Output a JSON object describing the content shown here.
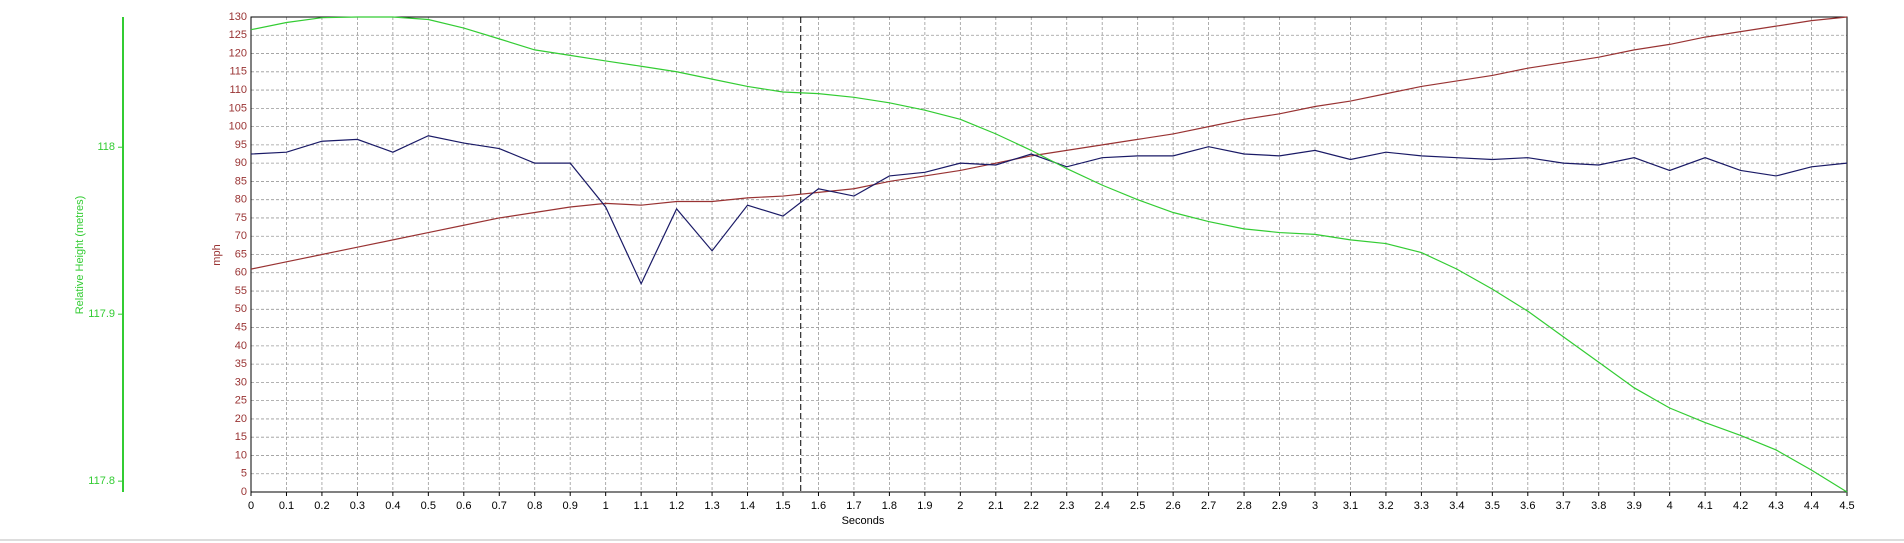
{
  "chart_data": {
    "type": "line",
    "x_label": "Seconds",
    "y_label": "mph",
    "y2_label": "Relative Height (metres)",
    "x": [
      0,
      0.1,
      0.2,
      0.3,
      0.4,
      0.5,
      0.6,
      0.7,
      0.8,
      0.9,
      1,
      1.1,
      1.2,
      1.3,
      1.4,
      1.5,
      1.6,
      1.7,
      1.8,
      1.9,
      2,
      2.1,
      2.2,
      2.3,
      2.4,
      2.5,
      2.6,
      2.7,
      2.8,
      2.9,
      3,
      3.1,
      3.2,
      3.3,
      3.4,
      3.5,
      3.6,
      3.7,
      3.8,
      3.9,
      4,
      4.1,
      4.2,
      4.3,
      4.4,
      4.5
    ],
    "series": [
      {
        "color": "#993333",
        "axis": "y",
        "values": [
          61,
          63,
          65,
          67,
          69,
          71,
          73,
          75,
          76.5,
          78,
          79,
          78.5,
          79.5,
          79.5,
          80.5,
          81,
          82,
          83,
          85,
          86.5,
          88,
          90,
          92,
          93.5,
          95,
          96.5,
          98,
          100,
          102,
          103.5,
          105.5,
          107,
          109,
          111,
          112.5,
          114,
          116,
          117.5,
          119,
          121,
          122.5,
          124.5,
          126,
          127.5,
          129,
          130
        ]
      },
      {
        "color": "#1a1a66",
        "axis": "y",
        "values": [
          92.5,
          93,
          96,
          96.5,
          93,
          97.5,
          95.5,
          94,
          90,
          90,
          78,
          57,
          77.5,
          66,
          78.5,
          75.5,
          83,
          81,
          86.5,
          87.5,
          90,
          89.5,
          92.5,
          89,
          91.5,
          92,
          92,
          94.5,
          92.5,
          92,
          93.5,
          91,
          93,
          92,
          91.5,
          91,
          91.5,
          90,
          89.5,
          91.5,
          88,
          91.5,
          88,
          86.5,
          89,
          90
        ]
      },
      {
        "color": "#33cc33",
        "axis": "y2",
        "values": [
          118.0704,
          118.0747,
          118.0776,
          118.078,
          118.078,
          118.0765,
          118.0714,
          118.0649,
          118.0583,
          118.055,
          118.0517,
          118.0485,
          118.0452,
          118.0408,
          118.0364,
          118.0331,
          118.0321,
          118.0299,
          118.0266,
          118.0222,
          118.0167,
          118.008,
          117.9981,
          117.9872,
          117.9773,
          117.9686,
          117.9609,
          117.9555,
          117.9511,
          117.9489,
          117.9478,
          117.9445,
          117.9423,
          117.9369,
          117.927,
          117.915,
          117.9018,
          117.8865,
          117.8712,
          117.8559,
          117.8438,
          117.8351,
          117.8274,
          117.8187,
          117.8066,
          117.7935
        ]
      }
    ],
    "xlim": [
      0,
      4.5
    ],
    "xticks": [
      0,
      0.1,
      0.2,
      0.3,
      0.4,
      0.5,
      0.6,
      0.7,
      0.8,
      0.9,
      1,
      1.1,
      1.2,
      1.3,
      1.4,
      1.5,
      1.6,
      1.7,
      1.8,
      1.9,
      2,
      2.1,
      2.2,
      2.3,
      2.4,
      2.5,
      2.6,
      2.7,
      2.8,
      2.9,
      3,
      3.1,
      3.2,
      3.3,
      3.4,
      3.5,
      3.6,
      3.7,
      3.8,
      3.9,
      4,
      4.1,
      4.2,
      4.3,
      4.4,
      4.5
    ],
    "ylim": [
      0,
      130
    ],
    "yticks": [
      0,
      5,
      10,
      15,
      20,
      25,
      30,
      35,
      40,
      45,
      50,
      55,
      60,
      65,
      70,
      75,
      80,
      85,
      90,
      95,
      100,
      105,
      110,
      115,
      120,
      125,
      130
    ],
    "y2lim": [
      117.7935,
      118.078
    ],
    "y2ticks": [
      117.8,
      117.9,
      118
    ],
    "y_color": "#993333",
    "y2_color": "#33cc33",
    "cursor": 1.55,
    "grid": true
  }
}
